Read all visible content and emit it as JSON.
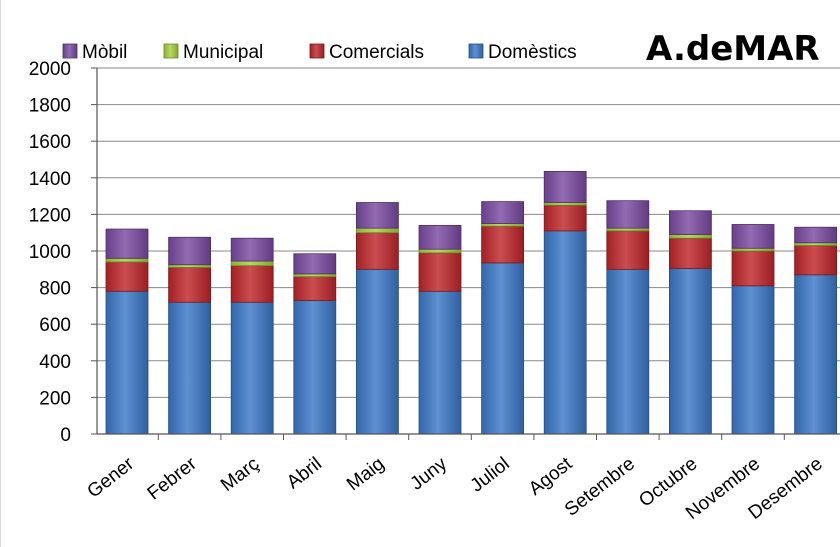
{
  "chart_data": {
    "type": "bar",
    "stacked": true,
    "title": "A.deMAR",
    "categories": [
      "Gener",
      "Febrer",
      "Març",
      "Abril",
      "Maig",
      "Juny",
      "Juliol",
      "Agost",
      "Setembre",
      "Octubre",
      "Novembre",
      "Desembre"
    ],
    "series": [
      {
        "name": "Domèstics",
        "color": "#3b78c8",
        "values": [
          780,
          720,
          720,
          730,
          900,
          780,
          935,
          1110,
          900,
          905,
          810,
          870
        ]
      },
      {
        "name": "Comercials",
        "color": "#c0262a",
        "values": [
          160,
          190,
          200,
          130,
          200,
          210,
          200,
          140,
          210,
          165,
          190,
          160
        ]
      },
      {
        "name": "Municipal",
        "color": "#a6cf3e",
        "values": [
          20,
          15,
          25,
          15,
          25,
          20,
          15,
          15,
          15,
          20,
          15,
          15
        ]
      },
      {
        "name": "Mòbil",
        "color": "#7a4aa1",
        "values": [
          160,
          150,
          125,
          110,
          140,
          130,
          120,
          170,
          150,
          130,
          130,
          85
        ]
      }
    ],
    "legend_order": [
      "Mòbil",
      "Municipal",
      "Comercials",
      "Domèstics"
    ],
    "ylim": [
      0,
      2000
    ],
    "yticks": [
      0,
      200,
      400,
      600,
      800,
      1000,
      1200,
      1400,
      1600,
      1800,
      2000
    ],
    "grid": true,
    "legend_position": "top-left",
    "xlabel": "",
    "ylabel": ""
  }
}
